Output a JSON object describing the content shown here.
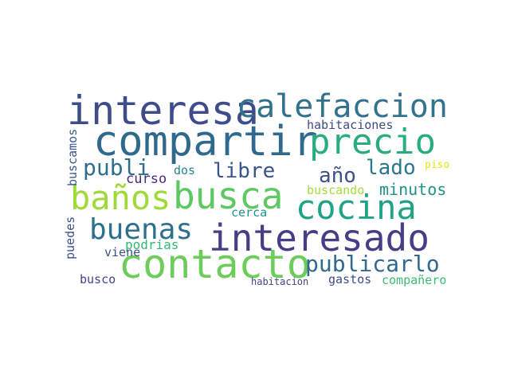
{
  "words": [
    {
      "id": "interesa",
      "text": "interesa",
      "color": "#3e4c8a"
    },
    {
      "id": "calefaccion",
      "text": "calefaccion",
      "color": "#33728e"
    },
    {
      "id": "compartir",
      "text": "compartir",
      "color": "#2f6a8e"
    },
    {
      "id": "precio",
      "text": "precio",
      "color": "#27ad81"
    },
    {
      "id": "publi",
      "text": "publi",
      "color": "#2e6e8e"
    },
    {
      "id": "libre",
      "text": "libre",
      "color": "#39558c"
    },
    {
      "id": "lado",
      "text": "lado",
      "color": "#2a788e"
    },
    {
      "id": "ano",
      "text": "año",
      "color": "#3b528b"
    },
    {
      "id": "curso",
      "text": "curso",
      "color": "#472a7a"
    },
    {
      "id": "dos",
      "text": "dos",
      "color": "#25858e"
    },
    {
      "id": "habitaciones",
      "text": "habitaciones",
      "color": "#3e4a89"
    },
    {
      "id": "piso",
      "text": "piso",
      "color": "#e7e419"
    },
    {
      "id": "banos",
      "text": "baños",
      "color": "#a0da39"
    },
    {
      "id": "busca",
      "text": "busca",
      "color": "#5ec962"
    },
    {
      "id": "cocina",
      "text": "cocina",
      "color": "#20a386"
    },
    {
      "id": "minutos",
      "text": "minutos",
      "color": "#21918c"
    },
    {
      "id": "buscando",
      "text": "buscando",
      "color": "#a5db36"
    },
    {
      "id": "buenas",
      "text": "buenas",
      "color": "#2d708e"
    },
    {
      "id": "interesado",
      "text": "interesado",
      "color": "#433e85"
    },
    {
      "id": "cerca",
      "text": "cerca",
      "color": "#21918c"
    },
    {
      "id": "contacto",
      "text": "contacto",
      "color": "#6ccd5a"
    },
    {
      "id": "publicarlo",
      "text": "publicarlo",
      "color": "#31688e"
    },
    {
      "id": "podrias",
      "text": "podrias",
      "color": "#35b779"
    },
    {
      "id": "viene",
      "text": "viene",
      "color": "#3b528b"
    },
    {
      "id": "busco",
      "text": "busco",
      "color": "#404688"
    },
    {
      "id": "habitacion",
      "text": "habitacion",
      "color": "#414487"
    },
    {
      "id": "gastos",
      "text": "gastos",
      "color": "#3e4a89"
    },
    {
      "id": "companero",
      "text": "compañero",
      "color": "#3dbc74"
    },
    {
      "id": "buscamos",
      "text": "buscamos",
      "color": "#38588c"
    },
    {
      "id": "puedes",
      "text": "puedes",
      "color": "#3b528b"
    }
  ]
}
